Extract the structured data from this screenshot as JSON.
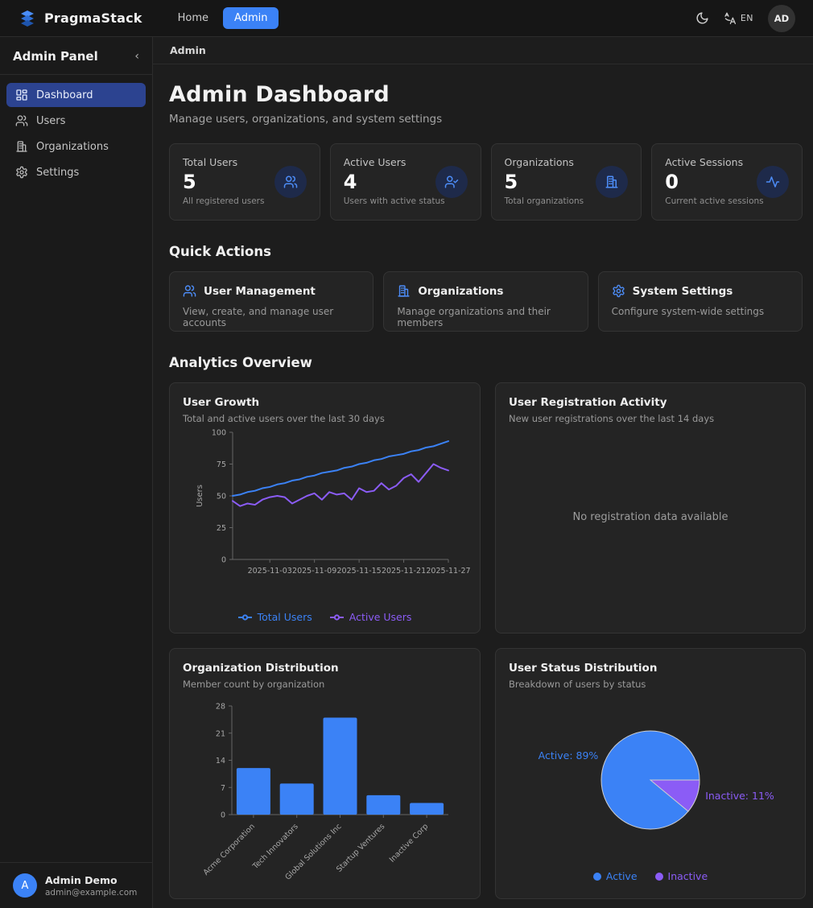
{
  "topbar": {
    "brand": "PragmaStack",
    "nav": {
      "home": "Home",
      "admin": "Admin"
    },
    "language": "EN",
    "avatar_initials": "AD"
  },
  "sidebar": {
    "title": "Admin Panel",
    "collapse_icon": "‹",
    "items": [
      {
        "label": "Dashboard",
        "active": true
      },
      {
        "label": "Users",
        "active": false
      },
      {
        "label": "Organizations",
        "active": false
      },
      {
        "label": "Settings",
        "active": false
      }
    ],
    "user": {
      "initial": "A",
      "name": "Admin Demo",
      "email": "admin@example.com"
    }
  },
  "breadcrumb": "Admin",
  "header": {
    "title": "Admin Dashboard",
    "subtitle": "Manage users, organizations, and system settings"
  },
  "stats": [
    {
      "label": "Total Users",
      "value": "5",
      "caption": "All registered users",
      "icon": "users-icon"
    },
    {
      "label": "Active Users",
      "value": "4",
      "caption": "Users with active status",
      "icon": "user-check-icon"
    },
    {
      "label": "Organizations",
      "value": "5",
      "caption": "Total organizations",
      "icon": "building-icon"
    },
    {
      "label": "Active Sessions",
      "value": "0",
      "caption": "Current active sessions",
      "icon": "activity-icon"
    }
  ],
  "quick_actions": {
    "heading": "Quick Actions",
    "cards": [
      {
        "title": "User Management",
        "description": "View, create, and manage user accounts",
        "icon": "users-icon"
      },
      {
        "title": "Organizations",
        "description": "Manage organizations and their members",
        "icon": "building-icon"
      },
      {
        "title": "System Settings",
        "description": "Configure system-wide settings",
        "icon": "gear-icon"
      }
    ]
  },
  "analytics": {
    "heading": "Analytics Overview",
    "growth_card": {
      "title": "User Growth",
      "subtitle": "Total and active users over the last 30 days"
    },
    "registration_card": {
      "title": "User Registration Activity",
      "subtitle": "New user registrations over the last 14 days",
      "empty_text": "No registration data available"
    },
    "org_card": {
      "title": "Organization Distribution",
      "subtitle": "Member count by organization"
    },
    "status_card": {
      "title": "User Status Distribution",
      "subtitle": "Breakdown of users by status"
    }
  },
  "colors": {
    "accent": "#3b82f6",
    "purple": "#8b5cf6",
    "axis": "#666666",
    "tick_text": "#a8a8a8"
  },
  "chart_data": [
    {
      "type": "line",
      "title": "User Growth",
      "xlabel": "",
      "ylabel": "Users",
      "ylim": [
        0,
        100
      ],
      "yticks": [
        0,
        25,
        50,
        75,
        100
      ],
      "n_points": 30,
      "x_tick_labels": [
        "2025-11-03",
        "2025-11-09",
        "2025-11-15",
        "2025-11-21",
        "2025-11-27"
      ],
      "x_tick_indices": [
        5,
        11,
        17,
        23,
        29
      ],
      "grid": false,
      "legend_position": "bottom",
      "series": [
        {
          "name": "Total Users",
          "color": "#3b82f6",
          "values": [
            50,
            51,
            53,
            54,
            56,
            57,
            59,
            60,
            62,
            63,
            65,
            66,
            68,
            69,
            70,
            72,
            73,
            75,
            76,
            78,
            79,
            81,
            82,
            83,
            85,
            86,
            88,
            89,
            91,
            93
          ]
        },
        {
          "name": "Active Users",
          "color": "#8b5cf6",
          "values": [
            46,
            42,
            44,
            43,
            47,
            49,
            50,
            49,
            44,
            47,
            50,
            52,
            47,
            53,
            51,
            52,
            47,
            56,
            53,
            54,
            60,
            55,
            58,
            64,
            67,
            61,
            68,
            75,
            72,
            70
          ]
        }
      ]
    },
    {
      "type": "bar",
      "title": "Organization Distribution",
      "categories": [
        "Acme Corporation",
        "Tech Innovators",
        "Global Solutions Inc",
        "Startup Ventures",
        "Inactive Corp"
      ],
      "values": [
        12,
        8,
        25,
        5,
        3
      ],
      "ylim": [
        0,
        28
      ],
      "yticks": [
        0,
        7,
        14,
        21,
        28
      ],
      "bar_color": "#3b82f6",
      "grid": false
    },
    {
      "type": "pie",
      "title": "User Status Distribution",
      "labels": [
        "Active",
        "Inactive"
      ],
      "values": [
        89,
        11
      ],
      "colors": [
        "#3b82f6",
        "#8b5cf6"
      ],
      "slice_labels": [
        "Active: 89%",
        "Inactive: 11%"
      ],
      "legend_position": "bottom"
    }
  ]
}
